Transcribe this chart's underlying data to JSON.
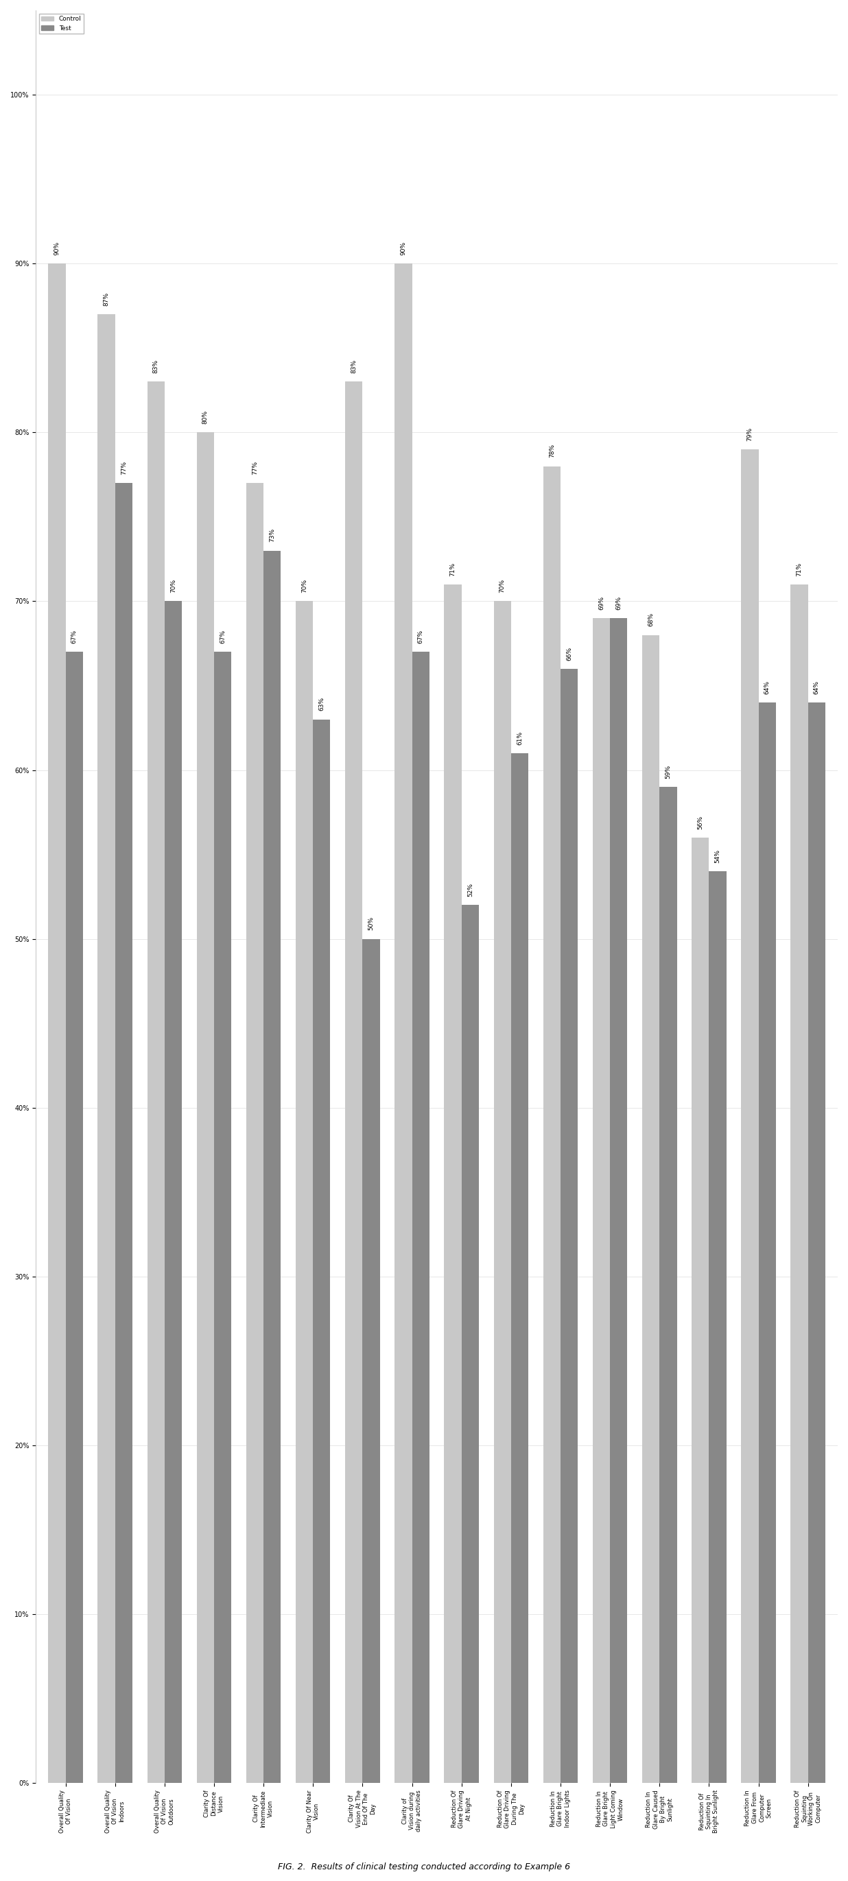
{
  "categories": [
    "Overall Quality\nOf Vision",
    "Overall Quality\nOf Vision\nIndoors",
    "Overall Quality\nOf Vision\nOutdoors",
    "Clarity Of\nDistance\nVision",
    "Clarity Of\nIntermediate\nVision",
    "Clarity Of Near\nVision",
    "Clarity Of\nVision At The\nEnd Of The\nDay",
    "Clarity of\nVision during\ndaily activities",
    "Reduction Of\nGlare Driving\nAt Night",
    "Reduction Of\nGlare Driving\nDuring The\nDay",
    "Reduction In\nGlare Bright\nIndoor Lights",
    "Reduction In\nGlare Bright\nLight Coming\nWindow",
    "Reduction In\nGlare Caused\nBy Bright\nSunlight",
    "Reduction Of\nSquinting In\nBright Sunlight",
    "Reduction In\nGlare From\nComputer\nScreen",
    "Reduction Of\nSquinting\nWorking On\nComputer"
  ],
  "control_values": [
    90,
    87,
    83,
    80,
    77,
    70,
    83,
    90,
    71,
    70,
    78,
    69,
    68,
    56,
    79,
    71
  ],
  "test_values": [
    67,
    77,
    70,
    67,
    73,
    63,
    50,
    67,
    52,
    61,
    66,
    69,
    59,
    54,
    64,
    64
  ],
  "control_color": "#c8c8c8",
  "test_color": "#888888",
  "background_color": "#ffffff",
  "title": "FIG. 2.  Results of clinical testing conducted according to Example 6",
  "ytick_labels": [
    "0%",
    "10%",
    "20%",
    "30%",
    "40%",
    "50%",
    "60%",
    "70%",
    "80%",
    "90%",
    "100%"
  ],
  "ytick_values": [
    0,
    10,
    20,
    30,
    40,
    50,
    60,
    70,
    80,
    90,
    100
  ],
  "legend_labels": [
    "Control",
    "Test"
  ],
  "bar_width": 0.35,
  "label_fontsize": 6.5,
  "tick_fontsize": 7,
  "title_fontsize": 9,
  "cat_label_fontsize": 6
}
